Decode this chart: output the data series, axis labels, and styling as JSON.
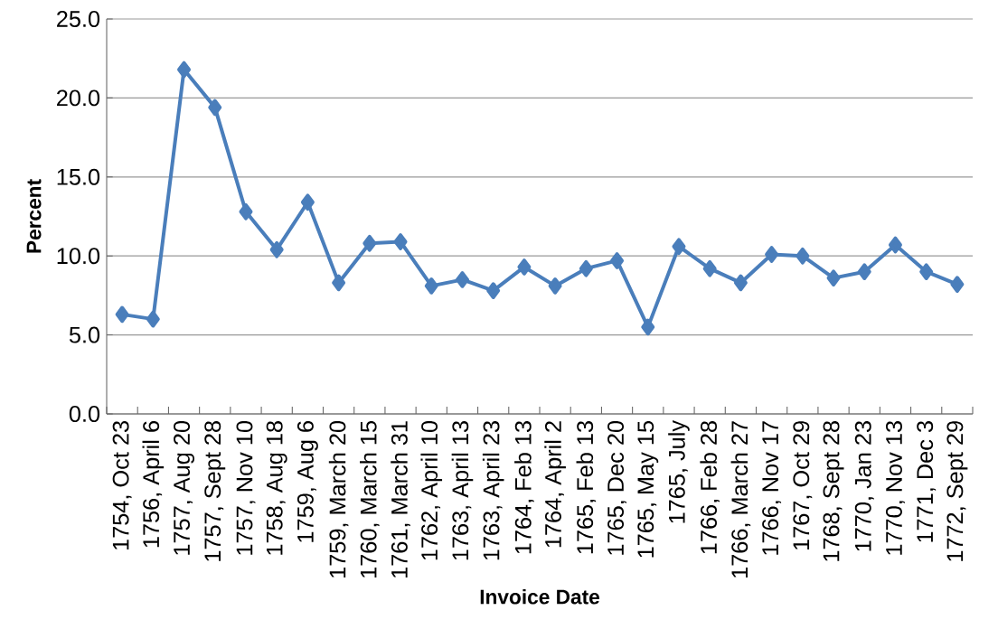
{
  "chart_data": {
    "type": "line",
    "xlabel": "Invoice Date",
    "ylabel": "Percent",
    "categories": [
      "1754, Oct 23",
      "1756, April 6",
      "1757, Aug 20",
      "1757, Sept 28",
      "1757, Nov 10",
      "1758, Aug 18",
      "1759, Aug 6",
      "1759, March 20",
      "1760, March 15",
      "1761, March 31",
      "1762, April 10",
      "1763, April 13",
      "1763, April 23",
      "1764, Feb 13",
      "1764, April 2",
      "1765, Feb 13",
      "1765, Dec 20",
      "1765, May 15",
      "1765, July",
      "1766, Feb 28",
      "1766, March 27",
      "1766, Nov 17",
      "1767, Oct 29",
      "1768, Sept 28",
      "1770, Jan 23",
      "1770, Nov 13",
      "1771, Dec 3",
      "1772, Sept 29"
    ],
    "series": [
      {
        "color": "#4a7ebb",
        "values": [
          6.3,
          6.0,
          21.8,
          19.4,
          12.8,
          10.4,
          13.4,
          8.3,
          10.8,
          10.9,
          8.1,
          8.5,
          7.8,
          9.3,
          8.1,
          9.2,
          9.7,
          5.5,
          10.6,
          9.2,
          8.3,
          10.1,
          10.0,
          8.6,
          9.0,
          10.7,
          9.0,
          8.2
        ]
      }
    ],
    "ylim": [
      0,
      25
    ],
    "yticks": [
      {
        "value": 0,
        "label": "0.0"
      },
      {
        "value": 5,
        "label": "5.0"
      },
      {
        "value": 10,
        "label": "10.0"
      },
      {
        "value": 15,
        "label": "15.0"
      },
      {
        "value": 20,
        "label": "20.0"
      },
      {
        "value": 25,
        "label": "25.0"
      }
    ],
    "grid": "y",
    "marker": "diamond",
    "line_style": "solid"
  }
}
